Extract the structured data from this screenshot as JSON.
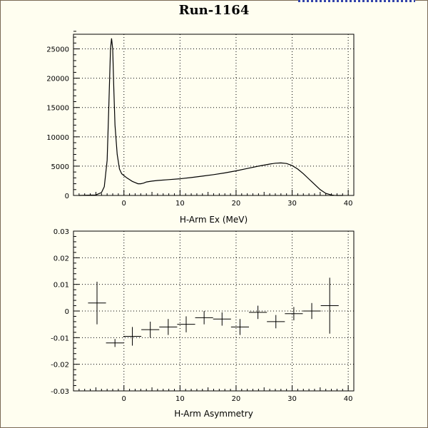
{
  "title": "Run-1164",
  "chart_data": [
    {
      "type": "line",
      "xlabel": "H-Arm Ex (MeV)",
      "ylabel": "",
      "xlim": [
        -9,
        41
      ],
      "ylim": [
        0,
        27500
      ],
      "grid": true,
      "xticks": [
        0,
        10,
        20,
        30,
        40
      ],
      "yticks": [
        0,
        5000,
        10000,
        15000,
        20000,
        25000
      ],
      "series": [
        {
          "x": [
            -8.0,
            -5.0,
            -4.0,
            -3.5,
            -3.0,
            -2.7,
            -2.4,
            -2.2,
            -2.0,
            -1.8,
            -1.6,
            -1.2,
            -0.8,
            -0.4,
            0.0,
            0.5,
            1.0,
            1.5,
            2.0,
            2.5,
            3.0,
            3.5,
            4.0,
            5.0,
            6.0,
            8.0,
            10.0,
            12.0,
            14.0,
            16.0,
            18.0,
            20.0,
            22.0,
            24.0,
            26.0,
            27.0,
            28.0,
            29.0,
            30.0,
            31.0,
            32.0,
            33.0,
            34.0,
            35.0,
            36.0,
            37.0,
            37.5,
            38.0,
            39.0
          ],
          "y": [
            0,
            80,
            500,
            1500,
            6000,
            15000,
            25000,
            26800,
            25000,
            18000,
            12000,
            7000,
            4500,
            3700,
            3400,
            3000,
            2700,
            2400,
            2200,
            2000,
            2000,
            2100,
            2300,
            2450,
            2550,
            2700,
            2850,
            3050,
            3300,
            3550,
            3850,
            4200,
            4600,
            5000,
            5350,
            5500,
            5550,
            5450,
            5100,
            4500,
            3700,
            2800,
            1900,
            1000,
            350,
            80,
            20,
            0,
            0
          ]
        }
      ]
    },
    {
      "type": "scatter",
      "xlabel": "H-Arm Asymmetry",
      "ylabel": "",
      "xlim": [
        -9,
        41
      ],
      "ylim": [
        -0.03,
        0.03
      ],
      "grid": true,
      "xticks": [
        0,
        10,
        20,
        30,
        40
      ],
      "yticks": [
        -0.03,
        -0.02,
        -0.01,
        0,
        0.01,
        0.02,
        0.03
      ],
      "ytick_labels": [
        "-0.03",
        "-0.02",
        "-0.01",
        "0",
        "0.01",
        "0.02",
        "0.03"
      ],
      "points": [
        {
          "x": -4.8,
          "xerr": 1.6,
          "y": 0.003,
          "yerr": 0.008
        },
        {
          "x": -1.6,
          "xerr": 1.6,
          "y": -0.012,
          "yerr": 0.0015
        },
        {
          "x": 1.5,
          "xerr": 1.6,
          "y": -0.0095,
          "yerr": 0.0035
        },
        {
          "x": 4.7,
          "xerr": 1.6,
          "y": -0.007,
          "yerr": 0.003
        },
        {
          "x": 7.9,
          "xerr": 1.6,
          "y": -0.006,
          "yerr": 0.003
        },
        {
          "x": 11.1,
          "xerr": 1.6,
          "y": -0.005,
          "yerr": 0.003
        },
        {
          "x": 14.3,
          "xerr": 1.6,
          "y": -0.0025,
          "yerr": 0.0025
        },
        {
          "x": 17.5,
          "xerr": 1.6,
          "y": -0.003,
          "yerr": 0.0025
        },
        {
          "x": 20.7,
          "xerr": 1.6,
          "y": -0.006,
          "yerr": 0.003
        },
        {
          "x": 23.9,
          "xerr": 1.6,
          "y": -0.0005,
          "yerr": 0.0025
        },
        {
          "x": 27.1,
          "xerr": 1.6,
          "y": -0.004,
          "yerr": 0.0025
        },
        {
          "x": 30.3,
          "xerr": 1.6,
          "y": -0.001,
          "yerr": 0.0025
        },
        {
          "x": 33.5,
          "xerr": 1.6,
          "y": 0.0,
          "yerr": 0.003
        },
        {
          "x": 36.7,
          "xerr": 1.6,
          "y": 0.002,
          "yerr": 0.0105
        }
      ]
    }
  ]
}
